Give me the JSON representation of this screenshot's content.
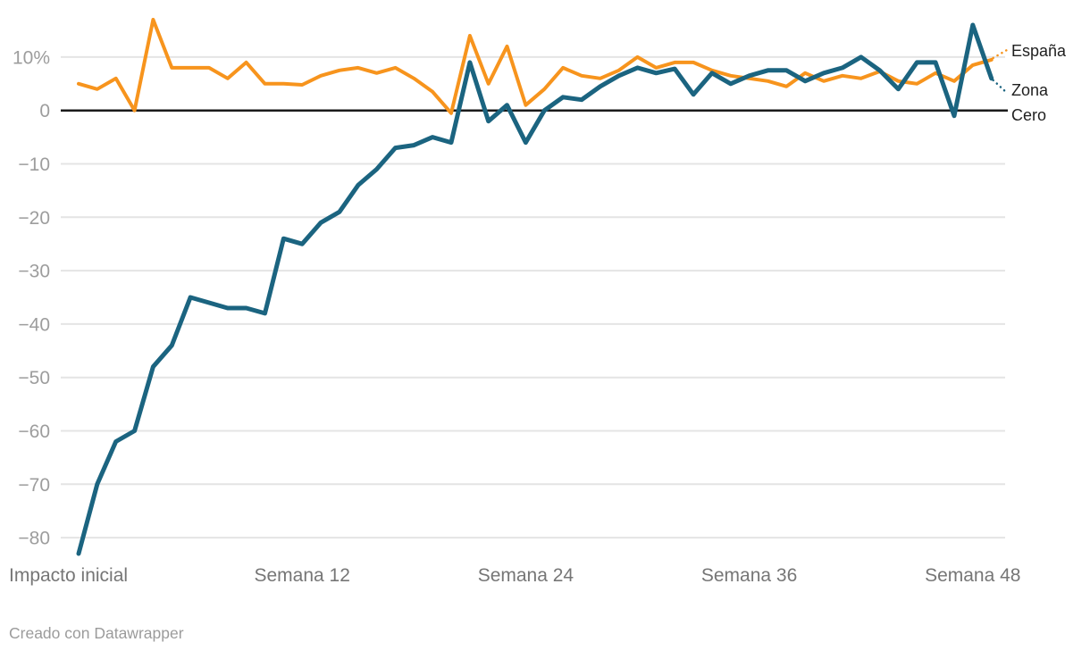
{
  "series_labels": {
    "espana": "España",
    "zona": "Zona",
    "cero": "Cero"
  },
  "footer": {
    "credit": "Creado con Datawrapper"
  },
  "colors": {
    "espana": "#f7941d",
    "zona": "#1b6480",
    "grid": "#e4e4e4",
    "zero_line": "#1a1a1a",
    "y_tick_text": "#9d9d9d",
    "x_tick_text": "#767676",
    "footer_text": "#9b9b9b",
    "label_text": "#1f1f1f"
  },
  "chart_data": {
    "type": "line",
    "title": "",
    "xlabel": "",
    "ylabel": "",
    "grid": true,
    "ylim": [
      -86,
      18
    ],
    "x_weeks": [
      0,
      1,
      2,
      3,
      4,
      5,
      6,
      7,
      8,
      9,
      10,
      11,
      12,
      13,
      14,
      15,
      16,
      17,
      18,
      19,
      20,
      21,
      22,
      23,
      24,
      25,
      26,
      27,
      28,
      29,
      30,
      31,
      32,
      33,
      34,
      35,
      36,
      37,
      38,
      39,
      40,
      41,
      42,
      43,
      44,
      45,
      46,
      47,
      48,
      49
    ],
    "x_ticks": [
      {
        "week": 0,
        "label": "Impacto inicial",
        "align": "start"
      },
      {
        "week": 12,
        "label": "Semana 12",
        "align": "middle"
      },
      {
        "week": 24,
        "label": "Semana 24",
        "align": "middle"
      },
      {
        "week": 36,
        "label": "Semana 36",
        "align": "middle"
      },
      {
        "week": 48,
        "label": "Semana 48",
        "align": "middle"
      }
    ],
    "y_ticks": [
      {
        "value": 10,
        "label": "10%"
      },
      {
        "value": 0,
        "label": "0"
      },
      {
        "value": -10,
        "label": "−10"
      },
      {
        "value": -20,
        "label": "−20"
      },
      {
        "value": -30,
        "label": "−30"
      },
      {
        "value": -40,
        "label": "−40"
      },
      {
        "value": -50,
        "label": "−50"
      },
      {
        "value": -60,
        "label": "−60"
      },
      {
        "value": -70,
        "label": "−70"
      },
      {
        "value": -80,
        "label": "−80"
      }
    ],
    "baseline": {
      "value": 0,
      "label": "Cero"
    },
    "legend_position": "right-end-of-line",
    "series": [
      {
        "name": "España",
        "color": "#f7941d",
        "stroke_width": 4,
        "values": [
          5,
          4,
          6,
          0,
          17,
          8,
          8,
          8,
          6,
          9,
          5,
          5,
          4.8,
          6.5,
          7.5,
          8,
          7,
          8,
          6,
          3.5,
          -0.5,
          14,
          5,
          12,
          1,
          4,
          8,
          6.5,
          6,
          7.5,
          10,
          8,
          9,
          9,
          7.5,
          6.5,
          6,
          5.5,
          4.5,
          7,
          5.5,
          6.5,
          6,
          7.3,
          5.5,
          5,
          7,
          5.5,
          8.5,
          9.5
        ]
      },
      {
        "name": "Zona",
        "color": "#1b6480",
        "stroke_width": 5,
        "values": [
          -83,
          -70,
          -62,
          -60,
          -48,
          -44,
          -35,
          -36,
          -37,
          -37,
          -38,
          -24,
          -25,
          -21,
          -19,
          -14,
          -11,
          -7,
          -6.5,
          -5,
          -6,
          9,
          -2,
          1,
          -6,
          0,
          2.5,
          2,
          4.5,
          6.5,
          8,
          7,
          7.8,
          3,
          7,
          5,
          6.5,
          7.5,
          7.5,
          5.5,
          7,
          8,
          10,
          7.5,
          4,
          9,
          9,
          -1,
          16,
          6
        ]
      }
    ]
  }
}
